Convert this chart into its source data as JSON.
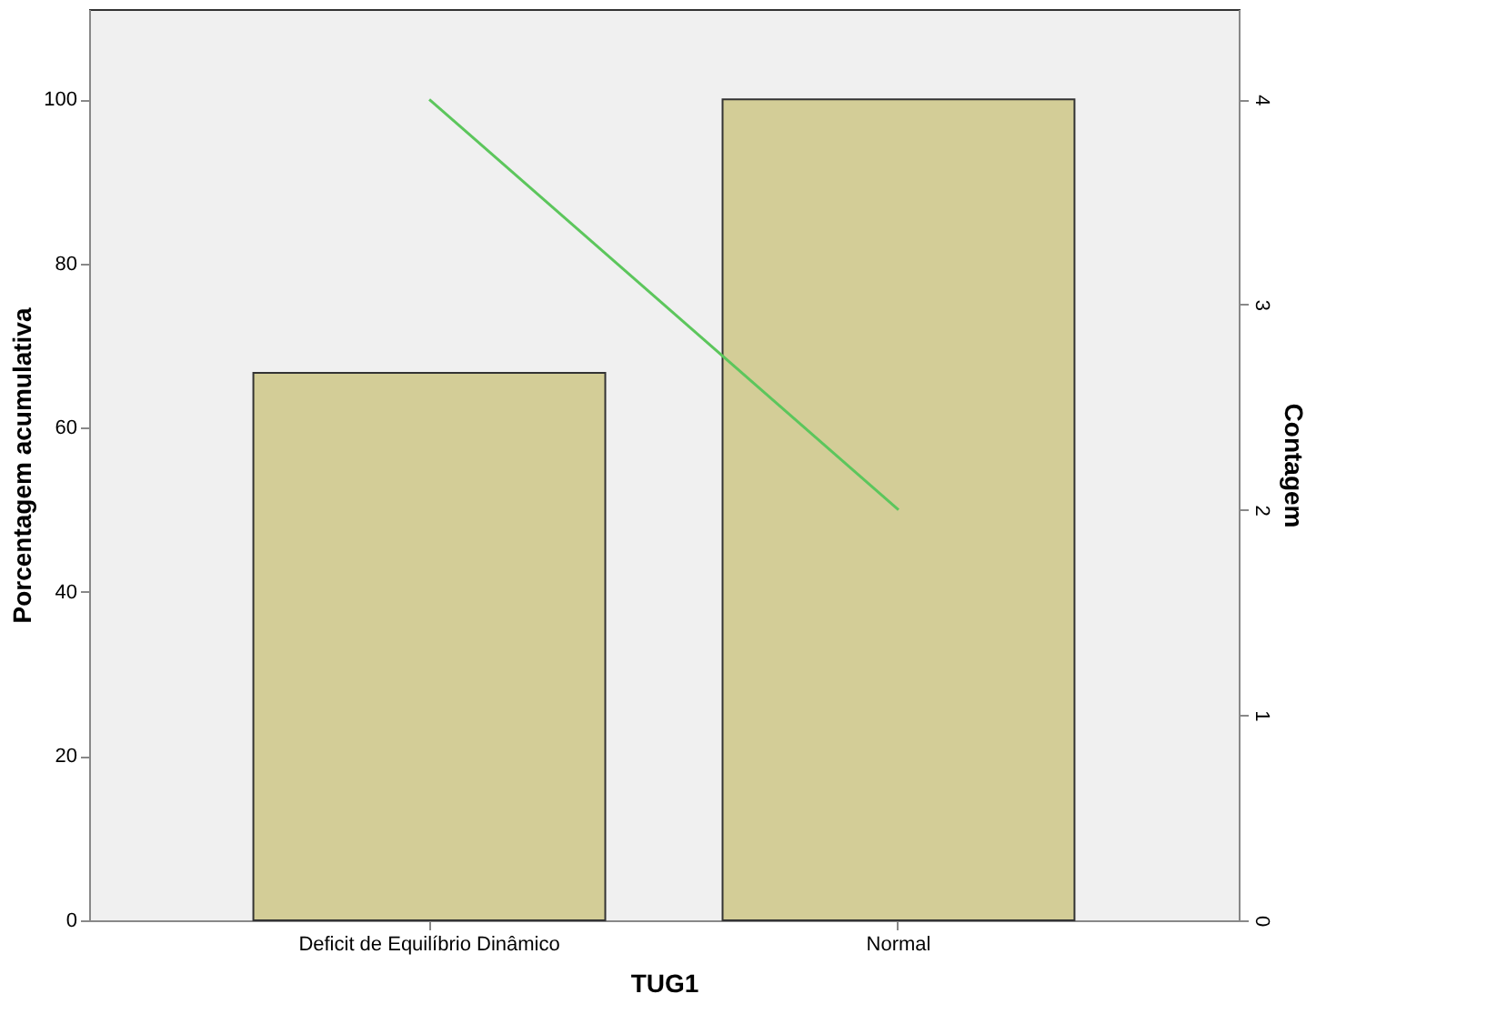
{
  "chart_data": {
    "type": "bar",
    "xlabel": "TUG1",
    "ylabel": "Porcentagem acumulativa",
    "y2label": "Contagem",
    "categories": [
      "Deficit de Equilíbrio Dinâmico",
      "Normal"
    ],
    "series": [
      {
        "color": "#d3cd97",
        "values": [
          66.7,
          100
        ]
      },
      {
        "type": "line",
        "axis": "y2",
        "color": "#5cc65c",
        "values": [
          4,
          2
        ]
      }
    ],
    "ylim": [
      0,
      111
    ],
    "yticks": [
      0,
      20,
      40,
      60,
      80,
      100
    ],
    "y2lim": [
      0,
      4.44
    ],
    "y2ticks": [
      0,
      1,
      2,
      3,
      4
    ],
    "grid": false,
    "marker": "none",
    "line_style": "solid"
  }
}
